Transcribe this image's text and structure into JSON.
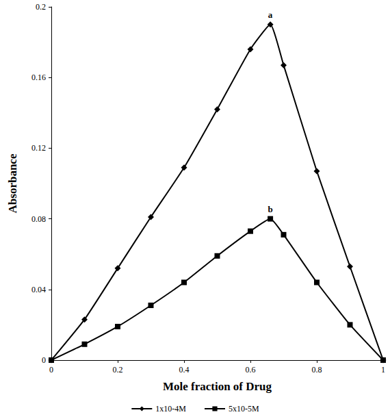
{
  "chart_data": {
    "type": "line",
    "xlabel": "Mole fraction of Drug",
    "ylabel": "Absorbance",
    "xlim": [
      0,
      1
    ],
    "xticks": [
      0,
      0.2,
      0.4,
      0.6,
      0.8,
      1
    ],
    "ylim": [
      0,
      0.2
    ],
    "yticks": [
      0,
      0.04,
      0.08,
      0.12,
      0.16,
      0.2
    ],
    "grid": false,
    "legend": "bottom",
    "x": [
      0,
      0.1,
      0.2,
      0.3,
      0.4,
      0.5,
      0.6,
      0.66,
      0.7,
      0.8,
      0.9,
      1
    ],
    "series": [
      {
        "name": "1x10-4M",
        "color": "#000000",
        "marker": "diamond",
        "values": [
          0,
          0.023,
          0.052,
          0.081,
          0.109,
          0.142,
          0.176,
          0.19,
          0.167,
          0.107,
          0.053,
          0
        ]
      },
      {
        "name": "5x10-5M",
        "color": "#000000",
        "marker": "square",
        "values": [
          0,
          0.009,
          0.019,
          0.031,
          0.044,
          0.059,
          0.073,
          0.08,
          0.071,
          0.044,
          0.02,
          0
        ]
      }
    ],
    "annotations": [
      {
        "text": "a",
        "x": 0.66,
        "y": 0.19
      },
      {
        "text": "b",
        "x": 0.66,
        "y": 0.08
      }
    ]
  }
}
